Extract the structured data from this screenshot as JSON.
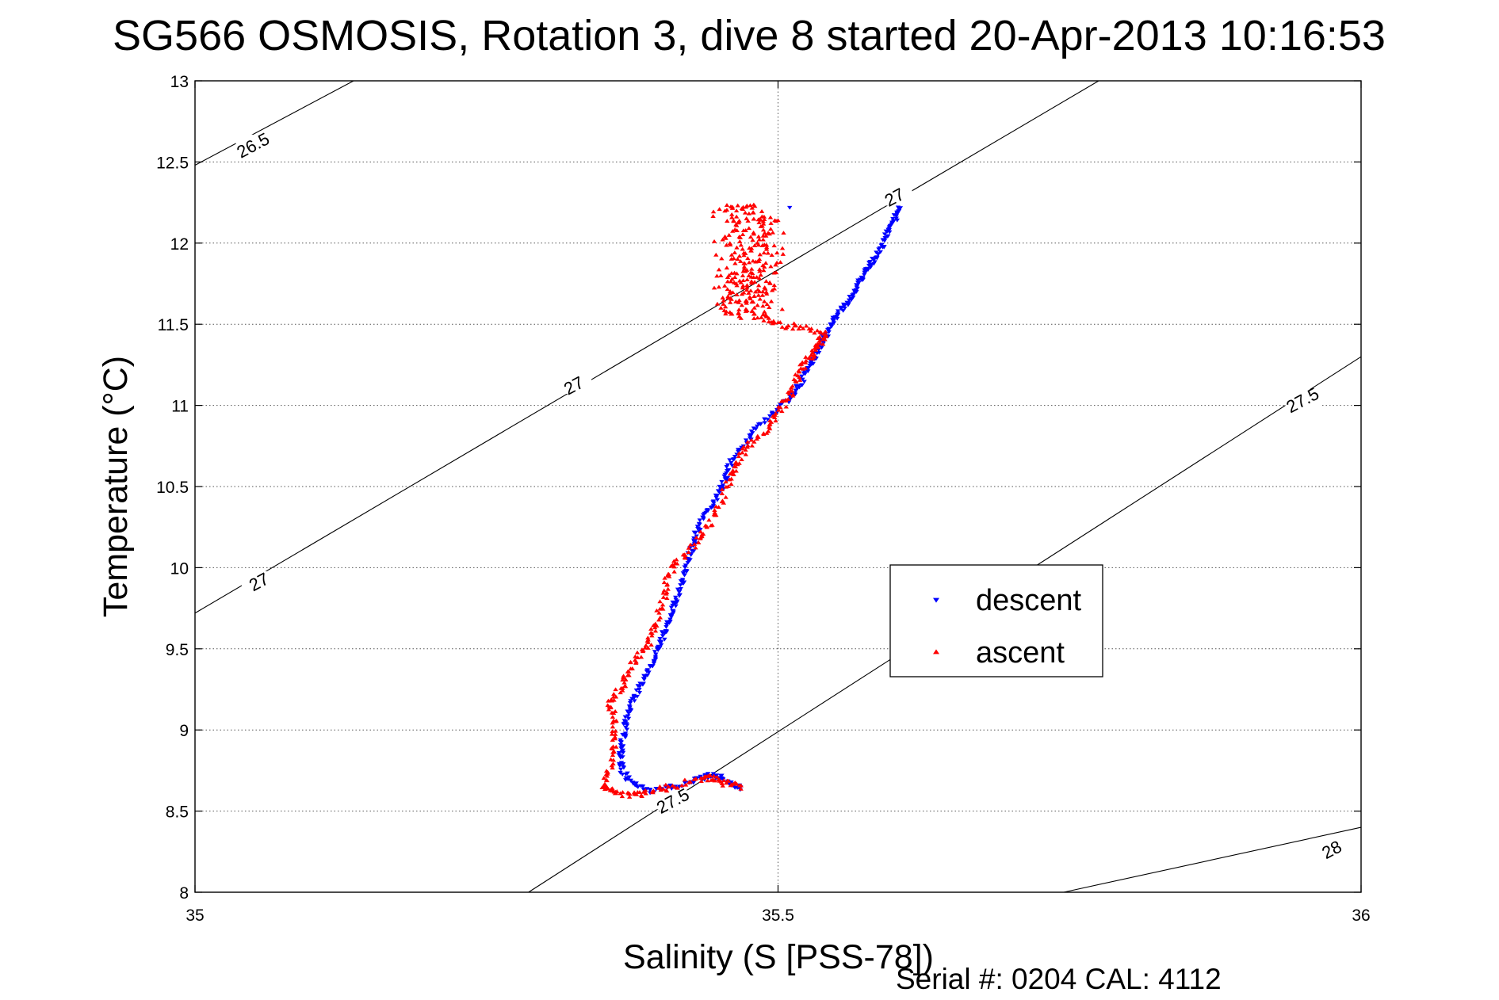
{
  "chart_data": {
    "type": "scatter",
    "title": "SG566 OSMOSIS, Rotation 3, dive 8 started 20-Apr-2013 10:16:53",
    "xlabel": "Salinity (S [PSS-78])",
    "ylabel": "Temperature (°C)",
    "xlim": [
      35,
      36
    ],
    "ylim": [
      8,
      13
    ],
    "x_ticks": [
      "35",
      "35.5",
      "36"
    ],
    "y_ticks": [
      "8",
      "8.5",
      "9",
      "9.5",
      "10",
      "10.5",
      "11",
      "11.5",
      "12",
      "12.5",
      "13"
    ],
    "grid": true,
    "legend_placement": "center-right",
    "footer": "Serial #: 0204  CAL: 4112",
    "density_contours": [
      {
        "label": "26.5",
        "points": [
          [
            35.0,
            12.48
          ],
          [
            35.136,
            13.0
          ]
        ]
      },
      {
        "label": "27",
        "points": [
          [
            35.0,
            9.72
          ],
          [
            35.775,
            13.0
          ]
        ]
      },
      {
        "label": "27.5",
        "points": [
          [
            35.286,
            8.0
          ],
          [
            36.0,
            11.3
          ]
        ]
      },
      {
        "label": "28",
        "points": [
          [
            35.745,
            8.0
          ],
          [
            36.0,
            8.4
          ]
        ]
      }
    ],
    "contour_labels": [
      {
        "text": "26.5",
        "x": 35.05,
        "y": 12.6
      },
      {
        "text": "27",
        "x": 35.325,
        "y": 11.12
      },
      {
        "text": "27",
        "x": 35.055,
        "y": 9.91
      },
      {
        "text": "27",
        "x": 35.6,
        "y": 12.28
      },
      {
        "text": "27.5",
        "x": 35.41,
        "y": 8.56
      },
      {
        "text": "27.5",
        "x": 35.95,
        "y": 11.03
      },
      {
        "text": "28",
        "x": 35.975,
        "y": 8.26
      }
    ],
    "series": [
      {
        "name": "descent",
        "color": "#0000ff",
        "marker": "triangle-down",
        "profile": [
          [
            35.605,
            12.22
          ],
          [
            35.6,
            12.15
          ],
          [
            35.595,
            12.08
          ],
          [
            35.59,
            12.0
          ],
          [
            35.585,
            11.92
          ],
          [
            35.578,
            11.85
          ],
          [
            35.572,
            11.78
          ],
          [
            35.565,
            11.7
          ],
          [
            35.558,
            11.62
          ],
          [
            35.55,
            11.55
          ],
          [
            35.545,
            11.48
          ],
          [
            35.538,
            11.4
          ],
          [
            35.533,
            11.32
          ],
          [
            35.528,
            11.25
          ],
          [
            35.52,
            11.15
          ],
          [
            35.512,
            11.05
          ],
          [
            35.495,
            10.95
          ],
          [
            35.48,
            10.85
          ],
          [
            35.47,
            10.75
          ],
          [
            35.46,
            10.65
          ],
          [
            35.455,
            10.55
          ],
          [
            35.448,
            10.45
          ],
          [
            35.44,
            10.35
          ],
          [
            35.432,
            10.25
          ],
          [
            35.427,
            10.15
          ],
          [
            35.423,
            10.05
          ],
          [
            35.42,
            9.95
          ],
          [
            35.415,
            9.85
          ],
          [
            35.41,
            9.75
          ],
          [
            35.405,
            9.65
          ],
          [
            35.4,
            9.55
          ],
          [
            35.395,
            9.45
          ],
          [
            35.388,
            9.35
          ],
          [
            35.38,
            9.25
          ],
          [
            35.373,
            9.15
          ],
          [
            35.37,
            9.05
          ],
          [
            35.367,
            8.95
          ],
          [
            35.365,
            8.85
          ],
          [
            35.366,
            8.75
          ],
          [
            35.375,
            8.67
          ],
          [
            35.39,
            8.62
          ],
          [
            35.41,
            8.65
          ],
          [
            35.43,
            8.69
          ],
          [
            35.44,
            8.72
          ],
          [
            35.45,
            8.71
          ],
          [
            35.46,
            8.67
          ],
          [
            35.47,
            8.64
          ]
        ],
        "extra_points": [
          [
            35.51,
            12.22
          ]
        ]
      },
      {
        "name": "ascent",
        "color": "#ff0000",
        "marker": "triangle-up",
        "profile": [
          [
            35.47,
            8.65
          ],
          [
            35.455,
            8.67
          ],
          [
            35.445,
            8.7
          ],
          [
            35.435,
            8.7
          ],
          [
            35.41,
            8.65
          ],
          [
            35.39,
            8.61
          ],
          [
            35.375,
            8.6
          ],
          [
            35.36,
            8.62
          ],
          [
            35.35,
            8.64
          ],
          [
            35.355,
            8.75
          ],
          [
            35.36,
            8.9
          ],
          [
            35.36,
            9.05
          ],
          [
            35.355,
            9.15
          ],
          [
            35.365,
            9.25
          ],
          [
            35.37,
            9.35
          ],
          [
            35.38,
            9.45
          ],
          [
            35.39,
            9.55
          ],
          [
            35.395,
            9.65
          ],
          [
            35.402,
            9.8
          ],
          [
            35.405,
            9.95
          ],
          [
            35.415,
            10.05
          ],
          [
            35.43,
            10.15
          ],
          [
            35.44,
            10.25
          ],
          [
            35.45,
            10.4
          ],
          [
            35.46,
            10.55
          ],
          [
            35.465,
            10.65
          ],
          [
            35.475,
            10.75
          ],
          [
            35.49,
            10.85
          ],
          [
            35.5,
            10.95
          ],
          [
            35.51,
            11.05
          ],
          [
            35.515,
            11.15
          ],
          [
            35.522,
            11.25
          ],
          [
            35.53,
            11.32
          ],
          [
            35.535,
            11.38
          ],
          [
            35.54,
            11.44
          ],
          [
            35.52,
            11.48
          ],
          [
            35.5,
            11.5
          ],
          [
            35.485,
            11.55
          ]
        ],
        "noisy_band": {
          "y_min": 11.55,
          "y_max": 12.25,
          "x_min": 35.445,
          "x_max": 35.51
        }
      }
    ]
  }
}
